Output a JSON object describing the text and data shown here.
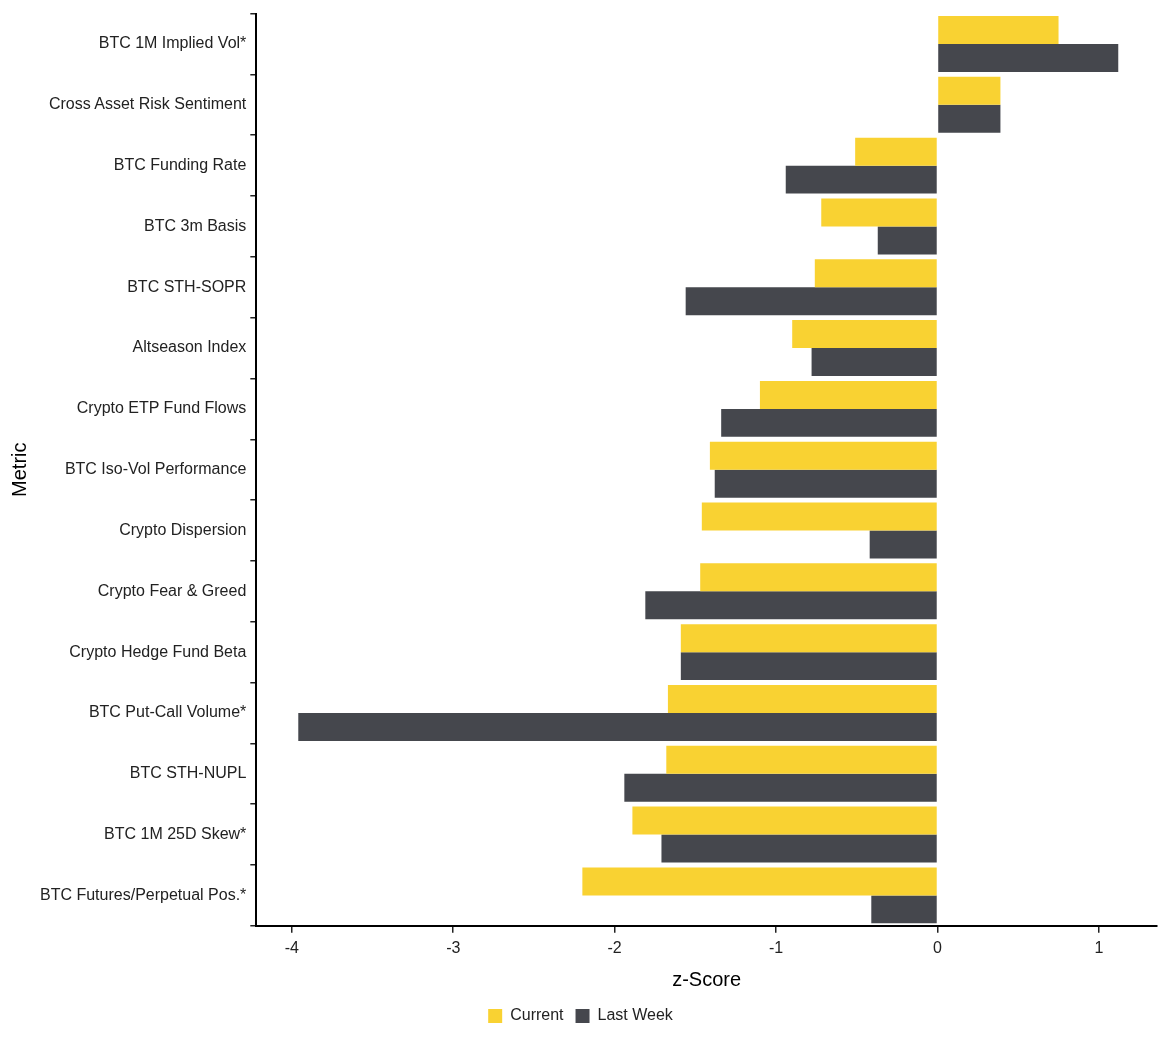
{
  "chart_data": {
    "type": "bar",
    "orientation": "horizontal",
    "xlabel": "z-Score",
    "ylabel": "Metric",
    "categories": [
      "BTC 1M Implied Vol*",
      "Cross Asset Risk Sentiment",
      "BTC Funding Rate",
      "BTC 3m Basis",
      "BTC STH-SOPR",
      "Altseason Index",
      "Crypto ETP Fund Flows",
      "BTC Iso-Vol Performance",
      "Crypto Dispersion",
      "Crypto Fear & Greed",
      "Crypto Hedge Fund Beta",
      "BTC Put-Call Volume*",
      "BTC STH-NUPL",
      "BTC 1M 25D Skew*",
      "BTC Futures/Perpetual Pos.*"
    ],
    "series": [
      {
        "name": "Current",
        "color": "#f9d232",
        "values": [
          0.75,
          0.39,
          -0.51,
          -0.72,
          -0.76,
          -0.9,
          -1.1,
          -1.41,
          -1.46,
          -1.47,
          -1.59,
          -1.67,
          -1.68,
          -1.89,
          -2.2
        ]
      },
      {
        "name": "Last Week",
        "color": "#45474d",
        "values": [
          1.12,
          0.39,
          -0.94,
          -0.37,
          -1.56,
          -0.78,
          -1.34,
          -1.38,
          -0.42,
          -1.81,
          -1.59,
          -3.96,
          -1.94,
          -1.71,
          -0.41
        ]
      }
    ],
    "xlim": [
      -4.22,
      1.36
    ],
    "xticks": [
      -4,
      -3,
      -2,
      -1,
      0,
      1
    ],
    "grid": false,
    "legend": "bottom"
  }
}
